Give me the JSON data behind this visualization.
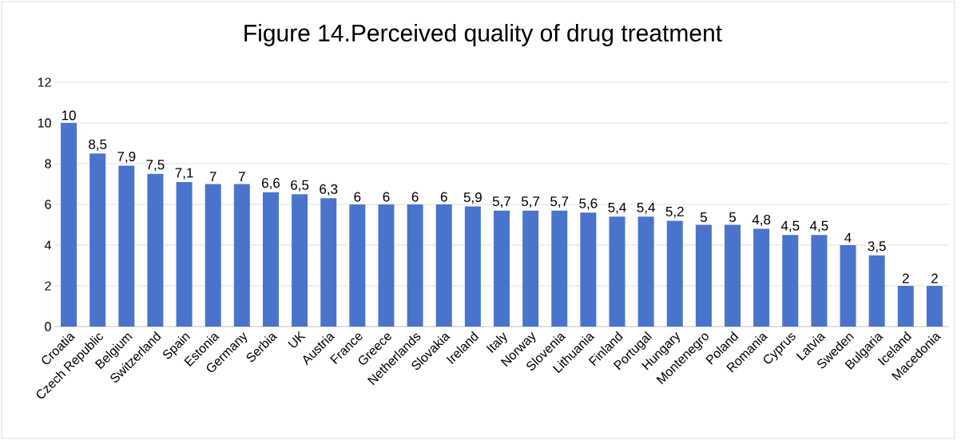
{
  "chart_data": {
    "type": "bar",
    "title": "Figure 14.Perceived quality of drug treatment",
    "categories": [
      "Croatia",
      "Czech Republic",
      "Belgium",
      "Switzerland",
      "Spain",
      "Estonia",
      "Germany",
      "Serbia",
      "UK",
      "Austria",
      "France",
      "Greece",
      "Netherlands",
      "Slovakia",
      "Ireland",
      "Italy",
      "Norway",
      "Slovenia",
      "Lithuania",
      "Finland",
      "Portugal",
      "Hungary",
      "Montenegro",
      "Poland",
      "Romania",
      "Cyprus",
      "Latvia",
      "Sweden",
      "Bulgaria",
      "Iceland",
      "Macedonia"
    ],
    "values": [
      10,
      8.5,
      7.9,
      7.5,
      7.1,
      7,
      7,
      6.6,
      6.5,
      6.3,
      6,
      6,
      6,
      6,
      5.9,
      5.7,
      5.7,
      5.7,
      5.6,
      5.4,
      5.4,
      5.2,
      5,
      5,
      4.8,
      4.5,
      4.5,
      4,
      3.5,
      2,
      2
    ],
    "value_labels": [
      "10",
      "8,5",
      "7,9",
      "7,5",
      "7,1",
      "7",
      "7",
      "6,6",
      "6,5",
      "6,3",
      "6",
      "6",
      "6",
      "6",
      "5,9",
      "5,7",
      "5,7",
      "5,7",
      "5,6",
      "5,4",
      "5,4",
      "5,2",
      "5",
      "5",
      "4,8",
      "4,5",
      "4,5",
      "4",
      "3,5",
      "2",
      "2"
    ],
    "color": "#4a74cc",
    "ylim": [
      0,
      12
    ],
    "yticks": [
      0,
      2,
      4,
      6,
      8,
      10,
      12
    ],
    "grid": "y"
  }
}
